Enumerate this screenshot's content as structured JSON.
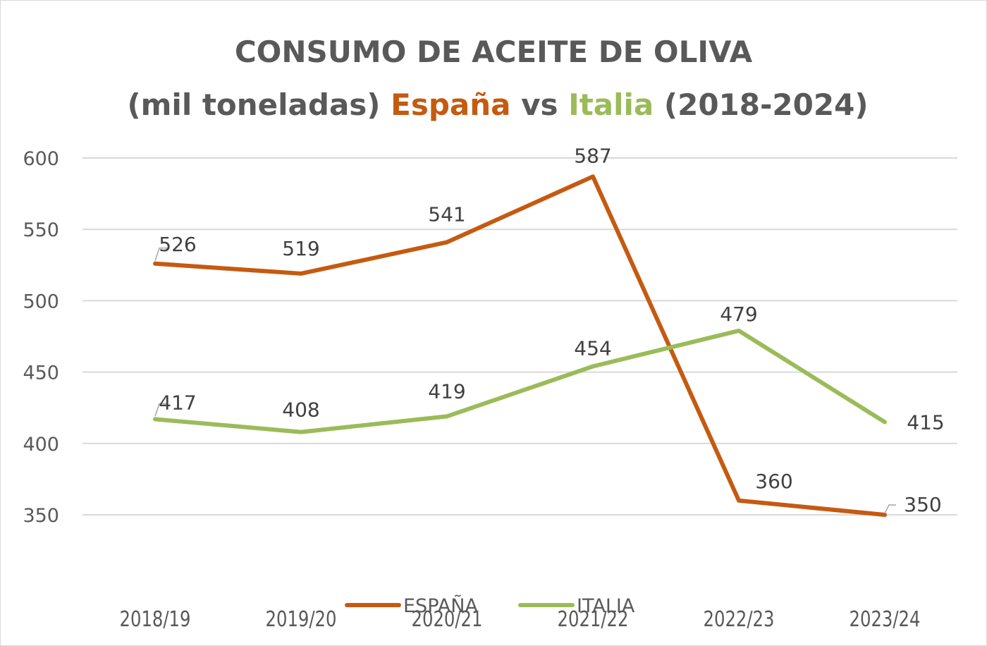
{
  "chart_data": {
    "type": "line",
    "title": {
      "line1": "CONSUMO DE ACEITE DE OLIVA",
      "line2_prefix": "(mil toneladas) ",
      "line2_spain": "España",
      "line2_vs": " vs ",
      "line2_italy": "Italia",
      "line2_suffix": " (2018-2024)"
    },
    "categories": [
      "2018/19",
      "2019/20",
      "2020/21",
      "2021/22",
      "2022/23",
      "2023/24"
    ],
    "ylim": [
      350,
      600
    ],
    "yticks": [
      350,
      400,
      450,
      500,
      550,
      600
    ],
    "grid": true,
    "xlabel": "",
    "ylabel": "",
    "legend_position": "bottom",
    "series": [
      {
        "name": "ESPAÑA",
        "color": "#c55a11",
        "values": [
          526,
          519,
          541,
          587,
          360,
          350
        ]
      },
      {
        "name": "ITALIA",
        "color": "#9bbb59",
        "values": [
          417,
          408,
          419,
          454,
          479,
          415
        ]
      }
    ]
  }
}
